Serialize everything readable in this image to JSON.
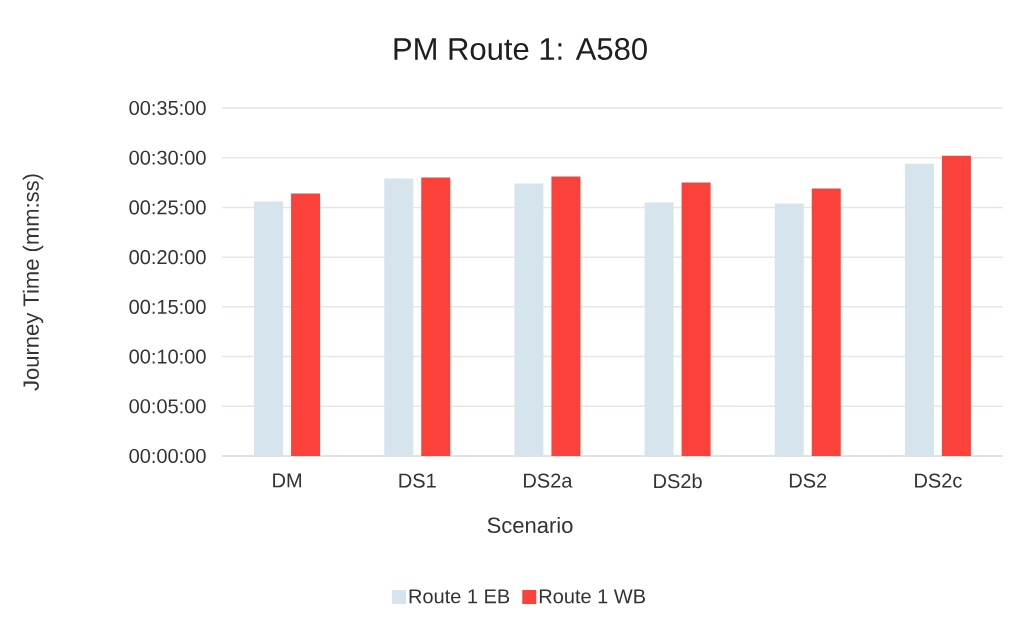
{
  "chart_data": {
    "type": "bar",
    "title": "PM Route 1: A580",
    "xlabel": "Scenario",
    "ylabel": "Journey Time (mm:ss)",
    "categories": [
      "DM",
      "DS1",
      "DS2a",
      "DS2b",
      "DS2",
      "DS2c"
    ],
    "series": [
      {
        "name": "Route 1 EB",
        "color": "#d6e4ee",
        "values": [
          25.6,
          27.9,
          27.4,
          25.5,
          25.4,
          29.4
        ]
      },
      {
        "name": "Route 1 WB",
        "color": "#fb423a",
        "values": [
          26.4,
          28.0,
          28.1,
          27.5,
          26.9,
          30.2
        ]
      }
    ],
    "ylim": [
      0,
      35
    ],
    "yticks": [
      {
        "value": 0,
        "label": "00:00:00"
      },
      {
        "value": 5,
        "label": "00:05:00"
      },
      {
        "value": 10,
        "label": "00:10:00"
      },
      {
        "value": 15,
        "label": "00:15:00"
      },
      {
        "value": 20,
        "label": "00:20:00"
      },
      {
        "value": 25,
        "label": "00:25:00"
      },
      {
        "value": 30,
        "label": "00:30:00"
      },
      {
        "value": 35,
        "label": "00:35:00"
      }
    ],
    "grid": "y",
    "legend": "bottom"
  }
}
